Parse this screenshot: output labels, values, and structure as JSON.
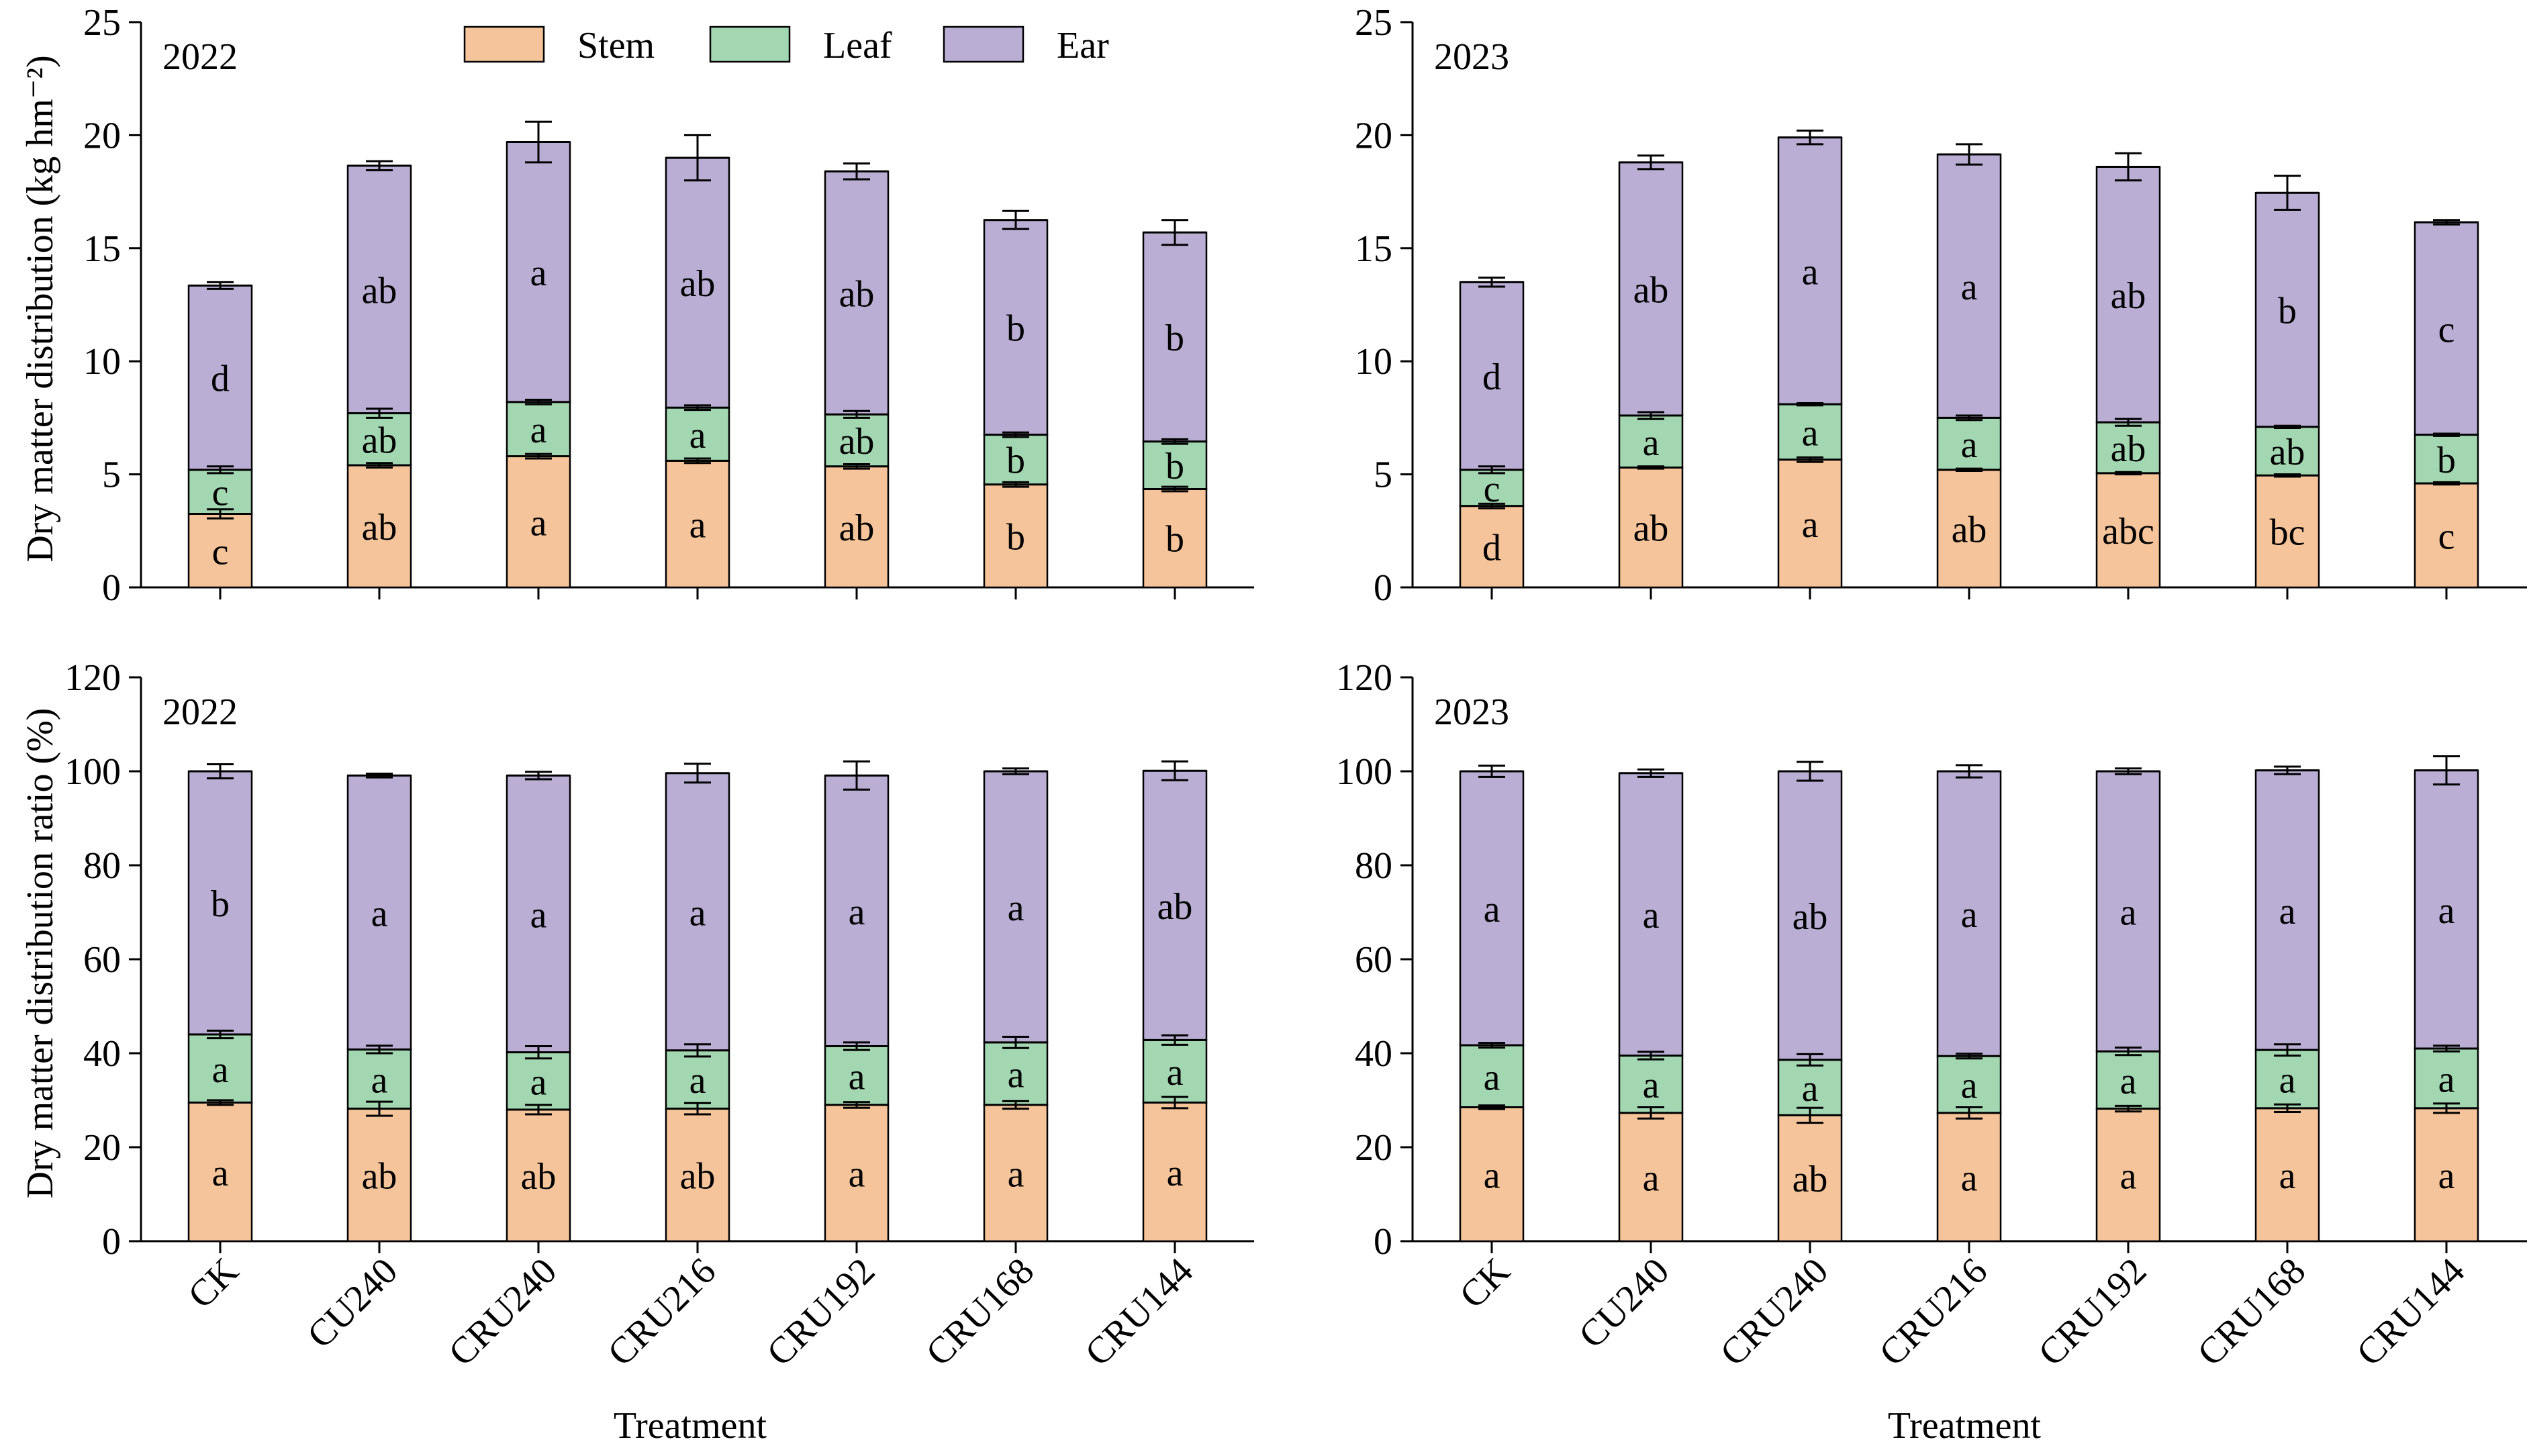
{
  "colors": {
    "Stem": "#f5c49a",
    "Leaf": "#a3d7b1",
    "Ear": "#baaed4"
  },
  "legend": [
    "Stem",
    "Leaf",
    "Ear"
  ],
  "xlabel": "Treatment",
  "ylabel_top": "Dry matter distribution (kg hm⁻²)",
  "ylabel_bottom": "Dry matter distribution ratio (%)",
  "chart_data": [
    {
      "type": "bar",
      "stacked": true,
      "panel": "top-left",
      "year": "2022",
      "categories": [
        "CK",
        "CU240",
        "CRU240",
        "CRU216",
        "CRU192",
        "CRU168",
        "CRU144"
      ],
      "ylim": [
        0,
        25
      ],
      "yticks": [
        0,
        5,
        10,
        15,
        20,
        25
      ],
      "series": [
        {
          "name": "Stem",
          "values": [
            3.25,
            5.4,
            5.8,
            5.6,
            5.35,
            4.55,
            4.35
          ],
          "errors": [
            0.2,
            0.1,
            0.1,
            0.1,
            0.1,
            0.1,
            0.1
          ],
          "letters": [
            "c",
            "ab",
            "a",
            "a",
            "ab",
            "b",
            "b"
          ]
        },
        {
          "name": "Leaf",
          "values": [
            1.95,
            2.3,
            2.4,
            2.35,
            2.3,
            2.2,
            2.1
          ],
          "errors": [
            0.15,
            0.2,
            0.1,
            0.1,
            0.15,
            0.1,
            0.1
          ],
          "letters": [
            "c",
            "ab",
            "a",
            "a",
            "ab",
            "b",
            "b"
          ]
        },
        {
          "name": "Ear",
          "values": [
            8.15,
            10.95,
            11.5,
            11.05,
            10.75,
            9.5,
            9.25
          ],
          "errors": [
            0.15,
            0.2,
            0.9,
            1.0,
            0.35,
            0.4,
            0.55
          ],
          "letters": [
            "d",
            "ab",
            "a",
            "ab",
            "ab",
            "b",
            "b"
          ]
        }
      ]
    },
    {
      "type": "bar",
      "stacked": true,
      "panel": "top-right",
      "year": "2023",
      "categories": [
        "CK",
        "CU240",
        "CRU240",
        "CRU216",
        "CRU192",
        "CRU168",
        "CRU144"
      ],
      "ylim": [
        0,
        25
      ],
      "yticks": [
        0,
        5,
        10,
        15,
        20,
        25
      ],
      "series": [
        {
          "name": "Stem",
          "values": [
            3.6,
            5.3,
            5.65,
            5.2,
            5.05,
            4.95,
            4.6
          ],
          "errors": [
            0.1,
            0.05,
            0.1,
            0.05,
            0.05,
            0.05,
            0.05
          ],
          "letters": [
            "d",
            "ab",
            "a",
            "ab",
            "abc",
            "bc",
            "c"
          ]
        },
        {
          "name": "Leaf",
          "values": [
            1.6,
            2.3,
            2.45,
            2.3,
            2.25,
            2.15,
            2.15
          ],
          "errors": [
            0.15,
            0.15,
            0.05,
            0.1,
            0.15,
            0.05,
            0.05
          ],
          "letters": [
            "c",
            "a",
            "a",
            "a",
            "ab",
            "ab",
            "b"
          ]
        },
        {
          "name": "Ear",
          "values": [
            8.3,
            11.2,
            11.8,
            11.65,
            11.3,
            10.35,
            9.4
          ],
          "errors": [
            0.2,
            0.3,
            0.3,
            0.45,
            0.6,
            0.75,
            0.1
          ],
          "letters": [
            "d",
            "ab",
            "a",
            "a",
            "ab",
            "b",
            "c"
          ]
        }
      ]
    },
    {
      "type": "bar",
      "stacked": true,
      "panel": "bottom-left",
      "year": "2022",
      "categories": [
        "CK",
        "CU240",
        "CRU240",
        "CRU216",
        "CRU192",
        "CRU168",
        "CRU144"
      ],
      "ylim": [
        0,
        120
      ],
      "yticks": [
        0,
        20,
        40,
        60,
        80,
        100,
        120
      ],
      "series": [
        {
          "name": "Stem",
          "values": [
            29.5,
            28.2,
            28,
            28.2,
            29,
            29,
            29.5
          ],
          "errors": [
            0.5,
            1.5,
            1.0,
            1.2,
            0.6,
            0.8,
            1.2
          ],
          "letters": [
            "a",
            "ab",
            "ab",
            "ab",
            "a",
            "a",
            "a"
          ]
        },
        {
          "name": "Leaf",
          "values": [
            14.5,
            12.6,
            12.2,
            12.4,
            12.5,
            13.3,
            13.3
          ],
          "errors": [
            0.8,
            0.8,
            1.3,
            1.3,
            0.8,
            1.2,
            1.0
          ],
          "letters": [
            "a",
            "a",
            "a",
            "a",
            "a",
            "a",
            "a"
          ]
        },
        {
          "name": "Ear",
          "values": [
            56,
            58.3,
            58.9,
            59,
            57.6,
            57.7,
            57.3
          ],
          "errors": [
            1.5,
            0.4,
            0.8,
            2.0,
            3.0,
            0.6,
            2.0
          ],
          "letters": [
            "b",
            "a",
            "a",
            "a",
            "a",
            "a",
            "ab"
          ]
        }
      ]
    },
    {
      "type": "bar",
      "stacked": true,
      "panel": "bottom-right",
      "year": "2023",
      "categories": [
        "CK",
        "CU240",
        "CRU240",
        "CRU216",
        "CRU192",
        "CRU168",
        "CRU144"
      ],
      "ylim": [
        0,
        120
      ],
      "yticks": [
        0,
        20,
        40,
        60,
        80,
        100,
        120
      ],
      "series": [
        {
          "name": "Stem",
          "values": [
            28.5,
            27.3,
            26.8,
            27.3,
            28.2,
            28.3,
            28.3
          ],
          "errors": [
            0.4,
            1.2,
            1.6,
            1.2,
            0.6,
            0.8,
            1.0
          ],
          "letters": [
            "a",
            "a",
            "ab",
            "a",
            "a",
            "a",
            "a"
          ]
        },
        {
          "name": "Leaf",
          "values": [
            13.2,
            12.2,
            11.8,
            12.1,
            12.2,
            12.4,
            12.7
          ],
          "errors": [
            0.5,
            0.8,
            1.2,
            0.5,
            0.8,
            1.2,
            0.6
          ],
          "letters": [
            "a",
            "a",
            "a",
            "a",
            "a",
            "a",
            "a"
          ]
        },
        {
          "name": "Ear",
          "values": [
            58.3,
            60.1,
            61.4,
            60.6,
            59.6,
            59.5,
            59.2
          ],
          "errors": [
            1.2,
            0.8,
            2.0,
            1.3,
            0.6,
            0.8,
            3.0
          ],
          "letters": [
            "a",
            "a",
            "ab",
            "a",
            "a",
            "a",
            "a"
          ]
        }
      ]
    }
  ]
}
